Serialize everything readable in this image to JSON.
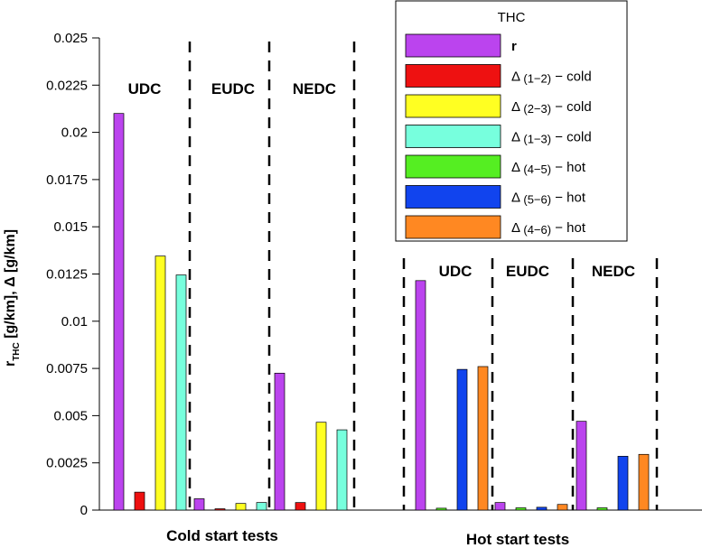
{
  "chart_data": {
    "type": "bar",
    "ylabel_main": "r",
    "ylabel_sub": "THC",
    "ylabel_rest": " [g/km], Δ [g/km]",
    "ylim": [
      0,
      0.025
    ],
    "yticks": [
      {
        "v": 0,
        "label": "0"
      },
      {
        "v": 0.0025,
        "label": "0.0025"
      },
      {
        "v": 0.005,
        "label": "0.005"
      },
      {
        "v": 0.0075,
        "label": "0.0075"
      },
      {
        "v": 0.01,
        "label": "0.01"
      },
      {
        "v": 0.0125,
        "label": "0.0125"
      },
      {
        "v": 0.015,
        "label": "0.015"
      },
      {
        "v": 0.0175,
        "label": "0.0175"
      },
      {
        "v": 0.02,
        "label": "0.02"
      },
      {
        "v": 0.0225,
        "label": "0.0225"
      },
      {
        "v": 0.025,
        "label": "0.025"
      }
    ],
    "legend": {
      "title": "THC",
      "items": [
        {
          "key": "r",
          "symbol": "",
          "sub": "",
          "suffix": "r",
          "color": "#bb44ee",
          "bold": true
        },
        {
          "key": "d12",
          "symbol": "Δ",
          "sub": "(1−2)",
          "suffix": " − cold",
          "color": "#ee1111"
        },
        {
          "key": "d23",
          "symbol": "Δ",
          "sub": "(2−3)",
          "suffix": " − cold",
          "color": "#ffff22"
        },
        {
          "key": "d13",
          "symbol": "Δ",
          "sub": "(1−3)",
          "suffix": " − cold",
          "color": "#77ffdd"
        },
        {
          "key": "d45",
          "symbol": "Δ",
          "sub": "(4−5)",
          "suffix": " − hot",
          "color": "#55ee22"
        },
        {
          "key": "d56",
          "symbol": "Δ",
          "sub": "(5−6)",
          "suffix": " − hot",
          "color": "#1144ee"
        },
        {
          "key": "d46",
          "symbol": "Δ",
          "sub": "(4−6)",
          "suffix": " − hot",
          "color": "#ff8822"
        }
      ]
    },
    "groups": [
      {
        "name": "Cold start tests",
        "cycles": [
          {
            "name": "UDC",
            "series": {
              "r": 0.021,
              "d12": 0.00095,
              "d23": 0.01345,
              "d13": 0.01245
            }
          },
          {
            "name": "EUDC",
            "series": {
              "r": 0.0006,
              "d12": 7e-05,
              "d23": 0.00035,
              "d13": 0.0004
            }
          },
          {
            "name": "NEDC",
            "series": {
              "r": 0.00725,
              "d12": 0.0004,
              "d23": 0.00465,
              "d13": 0.00425
            }
          }
        ]
      },
      {
        "name": "Hot start tests",
        "cycles": [
          {
            "name": "UDC",
            "series": {
              "r": 0.01215,
              "d45": 0.0001,
              "d56": 0.00745,
              "d46": 0.0076
            }
          },
          {
            "name": "EUDC",
            "series": {
              "r": 0.0004,
              "d45": 0.00012,
              "d56": 0.00015,
              "d46": 0.0003
            }
          },
          {
            "name": "NEDC",
            "series": {
              "r": 0.0047,
              "d45": 0.00012,
              "d56": 0.00285,
              "d46": 0.00295
            }
          }
        ]
      }
    ]
  }
}
